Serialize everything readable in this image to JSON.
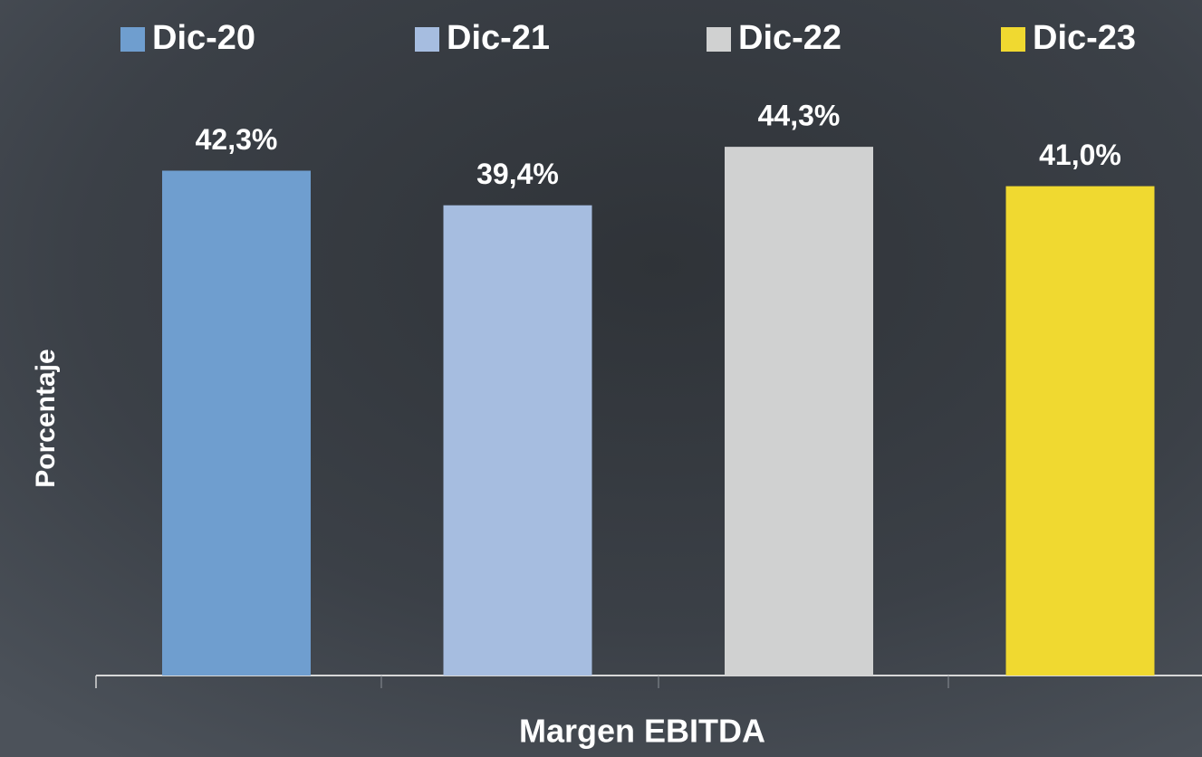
{
  "chart_data": {
    "type": "bar",
    "y_label": "Porcentaje",
    "categories": [
      "Margen EBITDA"
    ],
    "series": [
      {
        "name": "Dic-20",
        "color": "#6f9ecf",
        "values": [
          42.3
        ],
        "value_labels": [
          "42,3%"
        ]
      },
      {
        "name": "Dic-21",
        "color": "#a6bde0",
        "values": [
          39.4
        ],
        "value_labels": [
          "39,4%"
        ]
      },
      {
        "name": "Dic-22",
        "color": "#d0d1d1",
        "values": [
          44.3
        ],
        "value_labels": [
          "44,3%"
        ]
      },
      {
        "name": "Dic-23",
        "color": "#f0d930",
        "values": [
          41.0
        ],
        "value_labels": [
          "41,0%"
        ]
      }
    ],
    "ylim": [
      0,
      50
    ],
    "grid": false,
    "legend": "top"
  }
}
